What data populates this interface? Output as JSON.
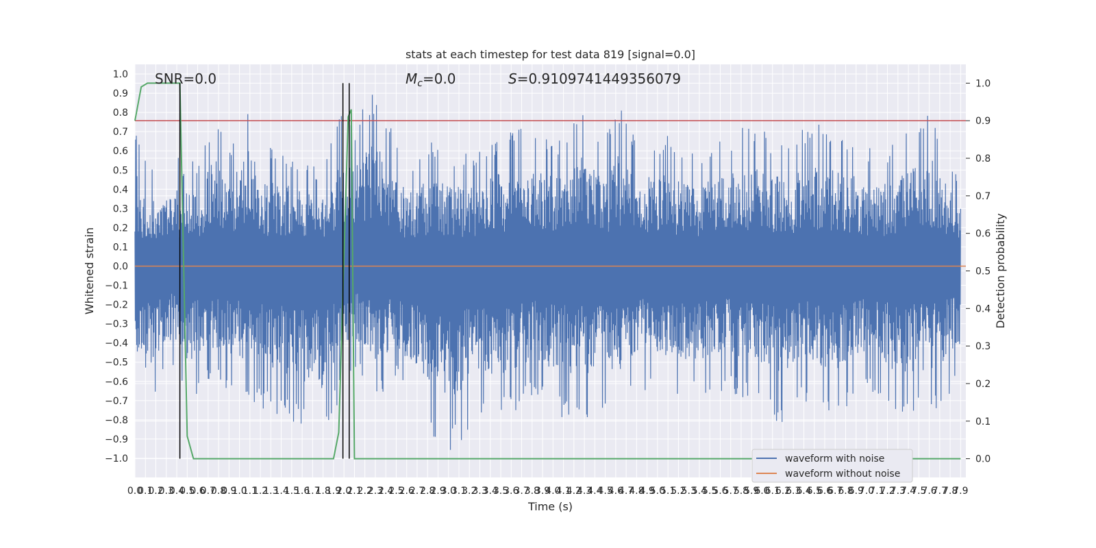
{
  "chart_data": {
    "type": "line",
    "title": "stats at each timestep for test data 819 [signal=0.0]",
    "xlabel": "Time (s)",
    "ylabel": "Whitened strain",
    "ylabel_right": "Detection probability",
    "xlim": [
      0.0,
      7.95
    ],
    "ylim": [
      -1.1,
      1.05
    ],
    "ylim_right": [
      -0.05,
      1.05
    ],
    "x_ticks": [
      0.0,
      0.1,
      0.2,
      0.3,
      0.4,
      0.5,
      0.6,
      0.7,
      0.8,
      0.9,
      1.0,
      1.1,
      1.2,
      1.3,
      1.4,
      1.5,
      1.6,
      1.7,
      1.8,
      1.9,
      2.0,
      2.1,
      2.2,
      2.3,
      2.4,
      2.5,
      2.6,
      2.7,
      2.8,
      2.9,
      3.0,
      3.1,
      3.2,
      3.3,
      3.4,
      3.5,
      3.6,
      3.7,
      3.8,
      3.9,
      4.0,
      4.1,
      4.2,
      4.3,
      4.4,
      4.5,
      4.6,
      4.7,
      4.8,
      4.9,
      5.0,
      5.1,
      5.2,
      5.3,
      5.4,
      5.5,
      5.6,
      5.7,
      5.8,
      5.9,
      6.0,
      6.1,
      6.2,
      6.3,
      6.4,
      6.5,
      6.6,
      6.7,
      6.8,
      6.9,
      7.0,
      7.1,
      7.2,
      7.3,
      7.4,
      7.5,
      7.6,
      7.7,
      7.8,
      7.9
    ],
    "y_ticks": [
      -1.0,
      -0.9,
      -0.8,
      -0.7,
      -0.6,
      -0.5,
      -0.4,
      -0.3,
      -0.2,
      -0.1,
      0.0,
      0.1,
      0.2,
      0.3,
      0.4,
      0.5,
      0.6,
      0.7,
      0.8,
      0.9,
      1.0
    ],
    "y_ticks_right": [
      0.0,
      0.1,
      0.2,
      0.3,
      0.4,
      0.5,
      0.6,
      0.7,
      0.8,
      0.9,
      1.0
    ],
    "grid": true,
    "legend_position": "bottom-right",
    "annotations": {
      "snr": "SNR=0.0",
      "mc": "=0.0",
      "mc_symbol": "M",
      "mc_sub": "c",
      "s": "=0.9109741449356079",
      "s_symbol": "S"
    },
    "series": [
      {
        "name": "waveform with noise",
        "color": "#4c72b0",
        "description": "dense noisy strain signal",
        "envelope_top_x": [
          0.0,
          0.1,
          0.2,
          0.3,
          0.4,
          0.45,
          0.5,
          0.6,
          0.75,
          0.9,
          1.1,
          1.2,
          1.35,
          1.6,
          1.8,
          1.95,
          2.1,
          2.3,
          2.6,
          2.85,
          3.0,
          3.3,
          3.6,
          3.8,
          4.1,
          4.3,
          4.5,
          4.6,
          4.8,
          5.1,
          5.3,
          5.6,
          5.9,
          6.2,
          6.5,
          6.8,
          7.1,
          7.3,
          7.6,
          7.9
        ],
        "envelope_top_y": [
          0.7,
          0.55,
          0.5,
          0.52,
          0.6,
          0.5,
          0.58,
          0.55,
          0.82,
          0.6,
          0.93,
          0.6,
          0.64,
          0.55,
          0.5,
          0.8,
          0.75,
          0.93,
          0.55,
          0.65,
          0.6,
          0.6,
          0.75,
          0.75,
          0.65,
          0.86,
          0.65,
          0.87,
          0.65,
          0.68,
          0.6,
          0.65,
          0.75,
          0.65,
          0.75,
          0.7,
          0.6,
          0.65,
          0.83,
          0.45
        ],
        "envelope_bottom_x": [
          0.0,
          0.1,
          0.25,
          0.4,
          0.45,
          0.55,
          0.7,
          0.9,
          1.1,
          1.5,
          1.8,
          1.95,
          2.1,
          2.3,
          2.5,
          2.8,
          3.0,
          3.3,
          3.6,
          3.8,
          4.1,
          4.4,
          4.6,
          4.8,
          5.1,
          5.4,
          5.6,
          5.9,
          6.2,
          6.4,
          6.7,
          7.0,
          7.3,
          7.6,
          7.9
        ],
        "envelope_bottom_y": [
          -0.6,
          -0.78,
          -0.62,
          -0.55,
          -0.65,
          -0.75,
          -0.6,
          -0.65,
          -0.72,
          -0.81,
          -0.93,
          -0.7,
          -0.55,
          -0.7,
          -0.6,
          -0.85,
          -1.0,
          -0.8,
          -0.8,
          -0.7,
          -0.8,
          -0.8,
          -0.83,
          -0.65,
          -0.7,
          -0.7,
          -0.65,
          -0.7,
          -0.84,
          -0.7,
          -0.8,
          -0.65,
          -0.8,
          -0.78,
          -0.62
        ]
      },
      {
        "name": "waveform without noise",
        "color": "#dd8452",
        "x": [
          0.0,
          7.95
        ],
        "y": [
          0.0,
          0.0
        ]
      },
      {
        "name": "",
        "color": "#55a868",
        "axis": "right",
        "x": [
          0.0,
          0.06,
          0.12,
          0.2,
          0.3,
          0.43,
          0.5,
          0.56,
          1.9,
          1.95,
          2.04,
          2.07,
          2.1,
          7.9
        ],
        "y": [
          0.9,
          0.99,
          1.0,
          1.0,
          1.0,
          1.0,
          0.06,
          0.0,
          0.0,
          0.07,
          0.91,
          0.93,
          0.0,
          0.0
        ]
      }
    ],
    "hlines": [
      {
        "y": 0.9,
        "axis": "right",
        "color": "#c44e52"
      }
    ],
    "vlines": [
      {
        "x": 0.43,
        "color": "#000000"
      },
      {
        "x": 1.99,
        "color": "#000000"
      },
      {
        "x": 2.05,
        "color": "#000000"
      }
    ]
  }
}
